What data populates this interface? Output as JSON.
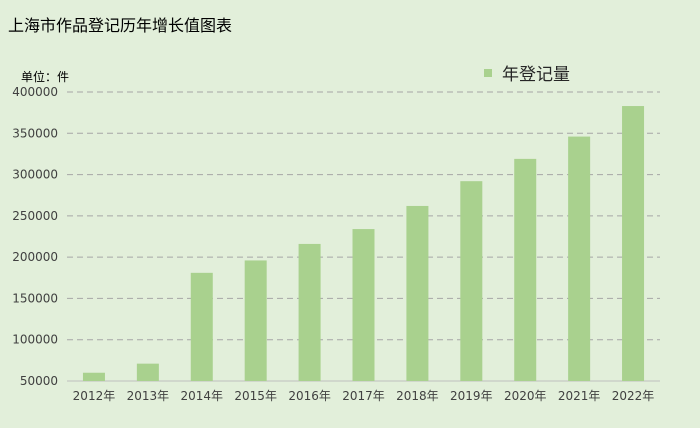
{
  "title": "上海市作品登记历年增长值图表",
  "unit_label": "单位：件",
  "legend": {
    "label": "年登记量",
    "position": "top-right"
  },
  "colors": {
    "background": "#e2efda",
    "bar": "#a9d18e",
    "grid": "#a6a6a6"
  },
  "chart_data": {
    "type": "bar",
    "title": "上海市作品登记历年增长值图表",
    "categories": [
      "2012年",
      "2013年",
      "2014年",
      "2015年",
      "2016年",
      "2017年",
      "2018年",
      "2019年",
      "2020年",
      "2021年",
      "2022年"
    ],
    "series": [
      {
        "name": "年登记量",
        "values": [
          60000,
          71000,
          181000,
          196000,
          216000,
          234000,
          262000,
          292000,
          319000,
          346000,
          383000
        ]
      }
    ],
    "ylim": [
      50000,
      400000
    ],
    "yticks": [
      50000,
      100000,
      150000,
      200000,
      250000,
      300000,
      350000,
      400000
    ],
    "ytick_labels": [
      "50000",
      "100000",
      "150000",
      "200000",
      "250000",
      "300000",
      "350000",
      "400000"
    ],
    "grid": true,
    "xlabel": "",
    "ylabel": ""
  }
}
